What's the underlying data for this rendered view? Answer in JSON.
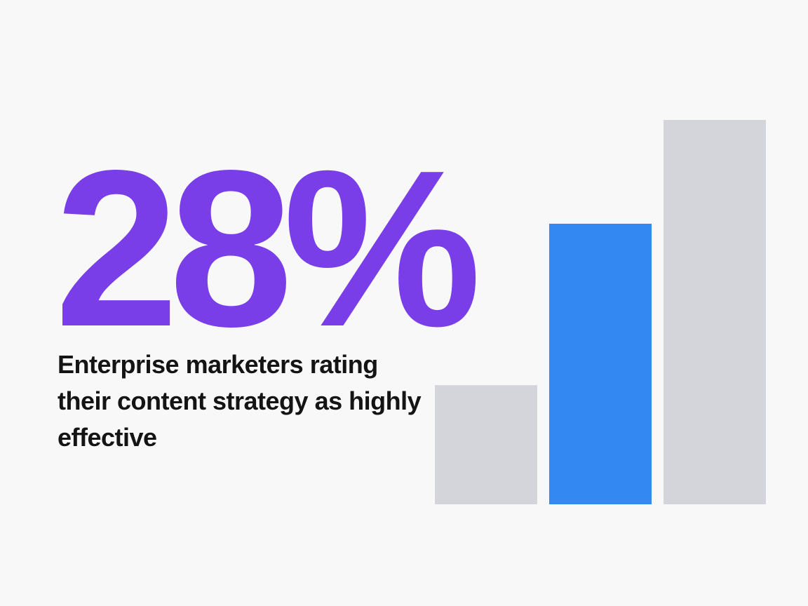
{
  "stat": {
    "value": "28%",
    "caption": "Enterprise marketers rating their content strategy as highly effective"
  },
  "colors": {
    "accent_text": "#7a3ee8",
    "highlight_bar": "#3388f2",
    "neutral_bar": "#d4d5da",
    "background": "#f8f8f9",
    "caption_text": "#141414"
  },
  "chart_data": {
    "type": "bar",
    "categories": [
      "",
      "",
      ""
    ],
    "values": [
      31,
      73,
      100
    ],
    "highlight_index": 1,
    "ylim": [
      0,
      100
    ],
    "grid": false,
    "title": "",
    "xlabel": "",
    "ylabel": ""
  }
}
